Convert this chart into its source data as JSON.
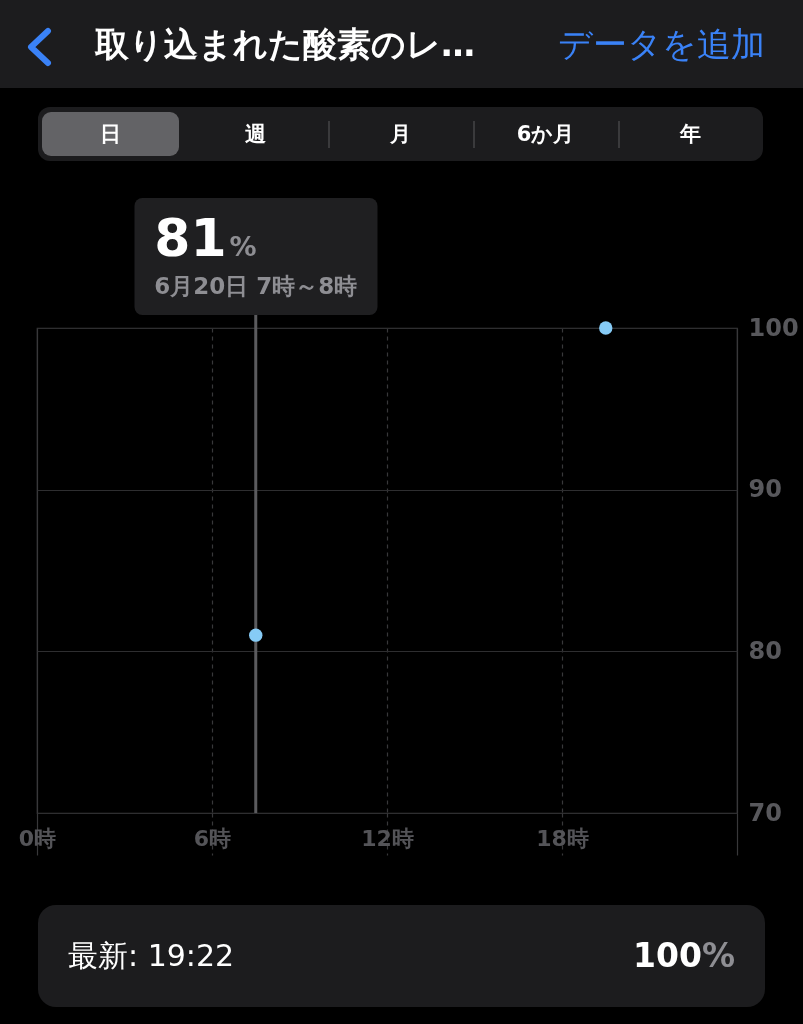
{
  "chart_data": {
    "type": "scatter",
    "title": "取り込まれた酸素のレ…",
    "x": [
      7.5,
      19.5
    ],
    "values": [
      81,
      100
    ],
    "color": "#86cbf6",
    "marker": "circle",
    "xlim": [
      0,
      24
    ],
    "xticks": [
      {
        "value": 0,
        "label": "0時"
      },
      {
        "value": 6,
        "label": "6時"
      },
      {
        "value": 12,
        "label": "12時"
      },
      {
        "value": 18,
        "label": "18時"
      },
      {
        "value": 24,
        "label": null
      }
    ],
    "ylim": [
      70,
      100
    ],
    "yticks": [
      70,
      80,
      90,
      100
    ],
    "grid": true,
    "ref_lines": [
      {
        "axis": "x",
        "value": 7.5,
        "label": "6月20日 7時～8時",
        "color": "#5b5b5e"
      }
    ],
    "annotations": [
      "データを追加",
      "日",
      "週",
      "月",
      "6か月",
      "年",
      "81%",
      "最新: 19:22",
      "100%"
    ]
  }
}
